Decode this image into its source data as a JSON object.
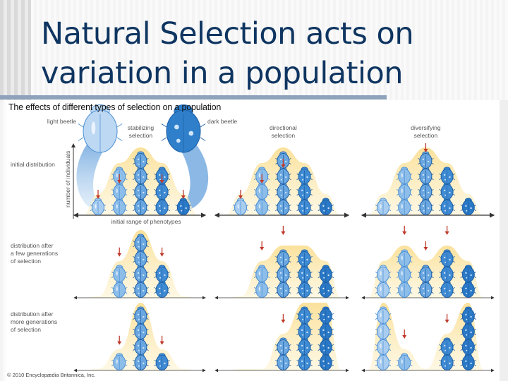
{
  "slide": {
    "title_line1": "Natural Selection acts on",
    "title_line2": "variation in a population"
  },
  "figure": {
    "title": "The effects of different types of selection on a population",
    "copyright": "© 2010 Encyclopædia Britannica, Inc.",
    "legend": {
      "light_beetle": "light beetle",
      "dark_beetle": "dark beetle"
    },
    "axis": {
      "y_label": "number of individuals",
      "x_label": "initial range of phenotypes"
    },
    "row_labels": [
      [
        "initial distribution"
      ],
      [
        "distribution after",
        "a few generations",
        "of selection"
      ],
      [
        "distribution after",
        "more generations",
        "of selection"
      ]
    ],
    "columns": [
      {
        "label_line1": "stabilizing",
        "label_line2": "selection"
      },
      {
        "label_line1": "directional",
        "label_line2": "selection"
      },
      {
        "label_line1": "diversifying",
        "label_line2": "selection"
      }
    ],
    "colors": {
      "curve": "#fbe3a0",
      "arrow": "#c0392b",
      "axis": "#333333",
      "beetle_shades": [
        "#a9cdf0",
        "#8dbde9",
        "#6aa7e0",
        "#3f8bd3",
        "#2a78c6"
      ]
    },
    "phenotype_shades_note": "columns 1-5 = light to dark beetle",
    "panels": [
      [
        {
          "counts": [
            1,
            3,
            4,
            3,
            1
          ],
          "arrows": [
            1,
            2,
            0,
            2,
            1
          ]
        },
        {
          "counts": [
            1,
            3,
            4,
            3,
            1
          ],
          "arrows": [
            1,
            2,
            3,
            0,
            0
          ]
        },
        {
          "counts": [
            1,
            3,
            4,
            3,
            1
          ],
          "arrows": [
            0,
            0,
            4,
            0,
            0
          ]
        }
      ],
      [
        {
          "counts": [
            0,
            2,
            4,
            2,
            0
          ],
          "arrows": [
            0,
            2.6,
            0,
            2.6,
            0
          ]
        },
        {
          "counts": [
            0,
            2,
            3,
            3,
            2
          ],
          "arrows": [
            0,
            3,
            4,
            0,
            0
          ]
        },
        {
          "counts": [
            2,
            3,
            2,
            3,
            2
          ],
          "arrows": [
            0,
            4,
            3,
            4,
            0
          ]
        }
      ],
      [
        {
          "counts": [
            0,
            1,
            4,
            1,
            0
          ],
          "arrows": [
            0,
            1.6,
            0,
            1.6,
            0
          ]
        },
        {
          "counts": [
            0,
            0,
            2,
            4,
            4
          ],
          "arrows": [
            0,
            0,
            3,
            0,
            0
          ]
        },
        {
          "counts": [
            4,
            1,
            0,
            2,
            4
          ],
          "arrows": [
            0,
            2,
            0,
            3,
            0
          ]
        }
      ]
    ]
  }
}
